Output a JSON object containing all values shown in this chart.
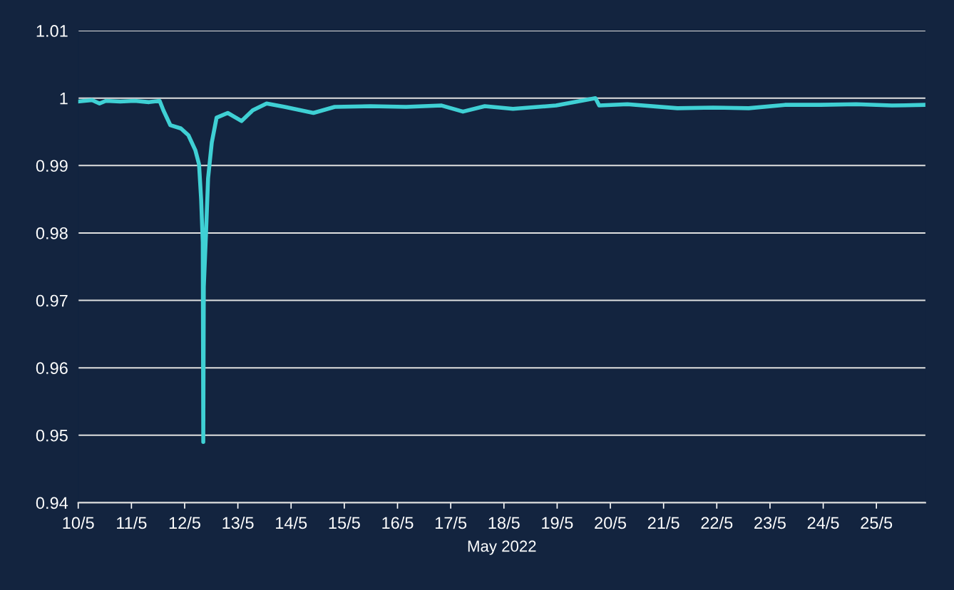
{
  "chart_data": {
    "type": "line",
    "xlabel": "May 2022",
    "x": [
      "2022-05-10T00:00",
      "2022-05-10T06:14",
      "2022-05-10T09:36",
      "2022-05-10T12:29",
      "2022-05-10T18:58",
      "2022-05-11T01:26",
      "2022-05-11T07:55",
      "2022-05-11T12:43",
      "2022-05-11T14:24",
      "2022-05-11T17:31",
      "2022-05-11T22:19",
      "2022-05-12T01:41",
      "2022-05-12T04:48",
      "2022-05-12T06:29",
      "2022-05-12T07:26",
      "2022-05-12T08:10",
      "2022-05-12T08:24",
      "2022-05-12T08:38",
      "2022-05-12T09:36",
      "2022-05-12T10:34",
      "2022-05-12T12:14",
      "2022-05-12T14:24",
      "2022-05-12T19:26",
      "2022-05-13T01:41",
      "2022-05-13T06:43",
      "2022-05-13T12:58",
      "2022-05-13T21:07",
      "2022-05-14T10:05",
      "2022-05-14T19:41",
      "2022-05-15T11:46",
      "2022-05-16T03:50",
      "2022-05-16T19:55",
      "2022-05-17T05:31",
      "2022-05-17T15:22",
      "2022-05-18T04:05",
      "2022-05-18T23:31",
      "2022-05-19T17:17",
      "2022-05-19T18:58",
      "2022-05-20T07:41",
      "2022-05-21T06:14",
      "2022-05-21T22:19",
      "2022-05-22T14:24",
      "2022-05-23T06:43",
      "2022-05-23T22:48",
      "2022-05-24T14:53",
      "2022-05-25T06:58",
      "2022-05-25T22:05"
    ],
    "series": [
      {
        "color": "#3fd0d4",
        "values": [
          0.9995,
          0.9997,
          0.9992,
          0.9996,
          0.9995,
          0.9996,
          0.9994,
          0.9996,
          0.9982,
          0.996,
          0.9955,
          0.9945,
          0.9923,
          0.9902,
          0.985,
          0.9786,
          0.949,
          0.972,
          0.9797,
          0.9881,
          0.9934,
          0.9971,
          0.9978,
          0.9966,
          0.9982,
          0.9992,
          0.9987,
          0.9978,
          0.9987,
          0.9988,
          0.9987,
          0.9989,
          0.998,
          0.9988,
          0.9984,
          0.9989,
          1.0,
          0.9989,
          0.9991,
          0.9985,
          0.9986,
          0.9985,
          0.999,
          0.999,
          0.9991,
          0.9989,
          0.999
        ]
      }
    ],
    "xlim": [
      "2022-05-10",
      "2022-05-25T22:05"
    ],
    "xticks": [
      {
        "value": "2022-05-10",
        "label": "10/5"
      },
      {
        "value": "2022-05-11",
        "label": "11/5"
      },
      {
        "value": "2022-05-12",
        "label": "12/5"
      },
      {
        "value": "2022-05-13",
        "label": "13/5"
      },
      {
        "value": "2022-05-14",
        "label": "14/5"
      },
      {
        "value": "2022-05-15",
        "label": "15/5"
      },
      {
        "value": "2022-05-16",
        "label": "16/5"
      },
      {
        "value": "2022-05-17",
        "label": "17/5"
      },
      {
        "value": "2022-05-18",
        "label": "18/5"
      },
      {
        "value": "2022-05-19",
        "label": "19/5"
      },
      {
        "value": "2022-05-20",
        "label": "20/5"
      },
      {
        "value": "2022-05-21",
        "label": "21/5"
      },
      {
        "value": "2022-05-22",
        "label": "22/5"
      },
      {
        "value": "2022-05-23",
        "label": "23/5"
      },
      {
        "value": "2022-05-24",
        "label": "24/5"
      },
      {
        "value": "2022-05-25",
        "label": "25/5"
      }
    ],
    "ylim": [
      0.94,
      1.01
    ],
    "yticks": [
      0.94,
      0.95,
      0.96,
      0.97,
      0.98,
      0.99,
      1,
      1.01
    ],
    "grid": "y",
    "legend": false,
    "line_style": "solid",
    "marker": "none"
  }
}
